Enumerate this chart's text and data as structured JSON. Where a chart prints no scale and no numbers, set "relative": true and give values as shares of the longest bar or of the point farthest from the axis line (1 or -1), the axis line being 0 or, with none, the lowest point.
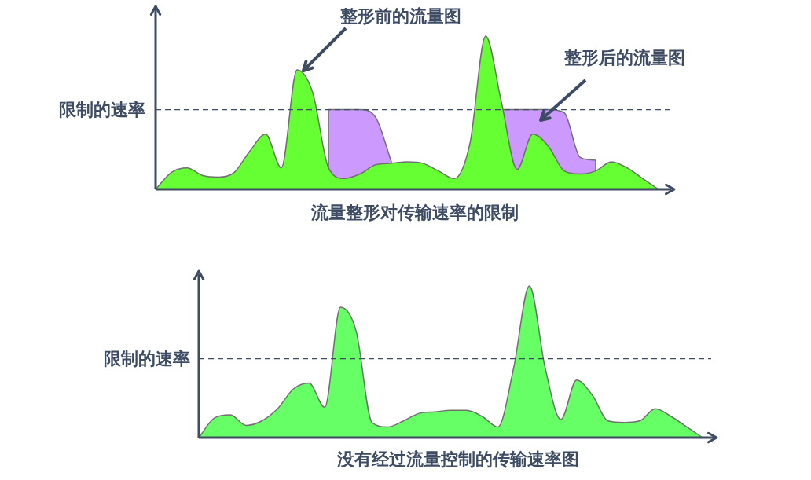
{
  "chart_data": [
    {
      "type": "area",
      "relative": true,
      "xlabel": "流量整形对传输速率的限制",
      "categories": [
        null,
        null,
        null,
        null,
        null,
        null,
        null,
        null,
        null,
        null,
        null,
        null,
        null,
        null,
        null,
        null,
        null,
        null,
        null,
        null,
        null,
        null,
        null,
        null,
        null,
        null,
        null,
        null,
        null,
        null,
        null,
        null,
        null
      ],
      "series": [
        {
          "color": "#cc99ff",
          "values": [
            null,
            null,
            null,
            null,
            null,
            null,
            null,
            null,
            null,
            null,
            null,
            0.52,
            0.52,
            0.52,
            0.47,
            0.18,
            null,
            null,
            null,
            null,
            null,
            null,
            0.52,
            0.52,
            0.52,
            0.52,
            0.5,
            0.21,
            0.19,
            null,
            null,
            null,
            null
          ]
        },
        {
          "color": "#66ff33",
          "values": [
            0,
            0.11,
            0.14,
            0.09,
            0.08,
            0.11,
            0.25,
            0.36,
            0.14,
            0.78,
            0.63,
            0.14,
            0.07,
            0.1,
            0.16,
            0.17,
            0.18,
            0.17,
            0.12,
            0.07,
            0.3,
            1,
            0.57,
            0.13,
            0.36,
            0.28,
            0.12,
            0.1,
            0.12,
            0.18,
            0.14,
            0.07,
            0
          ]
        }
      ],
      "ref_lines": [
        {
          "axis": "y",
          "value": 0.52,
          "label": "限制的速率",
          "line_style": "dashed"
        }
      ],
      "annotations": [
        "整形前的流量图",
        "整形后的流量图"
      ]
    },
    {
      "type": "area",
      "relative": true,
      "xlabel": "没有经过流量控制的传输速率图",
      "categories": [
        null,
        null,
        null,
        null,
        null,
        null,
        null,
        null,
        null,
        null,
        null,
        null,
        null,
        null,
        null,
        null,
        null,
        null,
        null,
        null,
        null,
        null,
        null,
        null,
        null,
        null,
        null,
        null,
        null,
        null,
        null,
        null,
        null
      ],
      "series": [
        {
          "color": "#66ff66",
          "values": [
            0,
            0.13,
            0.15,
            0.08,
            0.11,
            0.19,
            0.32,
            0.36,
            0.2,
            0.86,
            0.7,
            0.1,
            0.07,
            0.11,
            0.16,
            0.17,
            0.18,
            0.18,
            0.14,
            0.07,
            0.46,
            1,
            0.46,
            0.12,
            0.38,
            0.28,
            0.11,
            0.1,
            0.11,
            0.19,
            0.14,
            0.07,
            0
          ]
        }
      ],
      "ref_lines": [
        {
          "axis": "y",
          "value": 0.52,
          "label": "限制的速率",
          "line_style": "dashed"
        }
      ]
    }
  ]
}
